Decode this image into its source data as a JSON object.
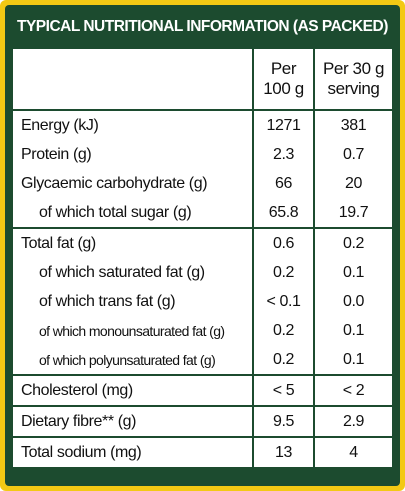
{
  "header": {
    "title": "TYPICAL NUTRITIONAL INFORMATION (AS PACKED)"
  },
  "table": {
    "columns": [
      [
        "Per",
        "100 g"
      ],
      [
        "Per 30 g",
        "serving"
      ]
    ],
    "rows": [
      [
        "Energy (kJ)",
        "1271",
        "381"
      ],
      [
        "Protein (g)",
        "2.3",
        "0.7"
      ],
      [
        "Glycaemic carbohydrate (g)",
        "66",
        "20"
      ],
      [
        "of which total sugar (g)",
        "65.8",
        "19.7"
      ],
      [
        "Total fat (g)",
        "0.6",
        "0.2"
      ],
      [
        "of which saturated fat (g)",
        "0.2",
        "0.1"
      ],
      [
        "of which trans fat (g)",
        "< 0.1",
        "0.0"
      ],
      [
        "of which monounsaturated fat (g)",
        "0.2",
        "0.1"
      ],
      [
        "of which polyunsaturated fat (g)",
        "0.2",
        "0.1"
      ],
      [
        "Cholesterol (mg)",
        "< 5",
        "< 2"
      ],
      [
        "Dietary fibre** (g)",
        "9.5",
        "2.9"
      ],
      [
        "Total sodium (mg)",
        "13",
        "4"
      ]
    ]
  }
}
